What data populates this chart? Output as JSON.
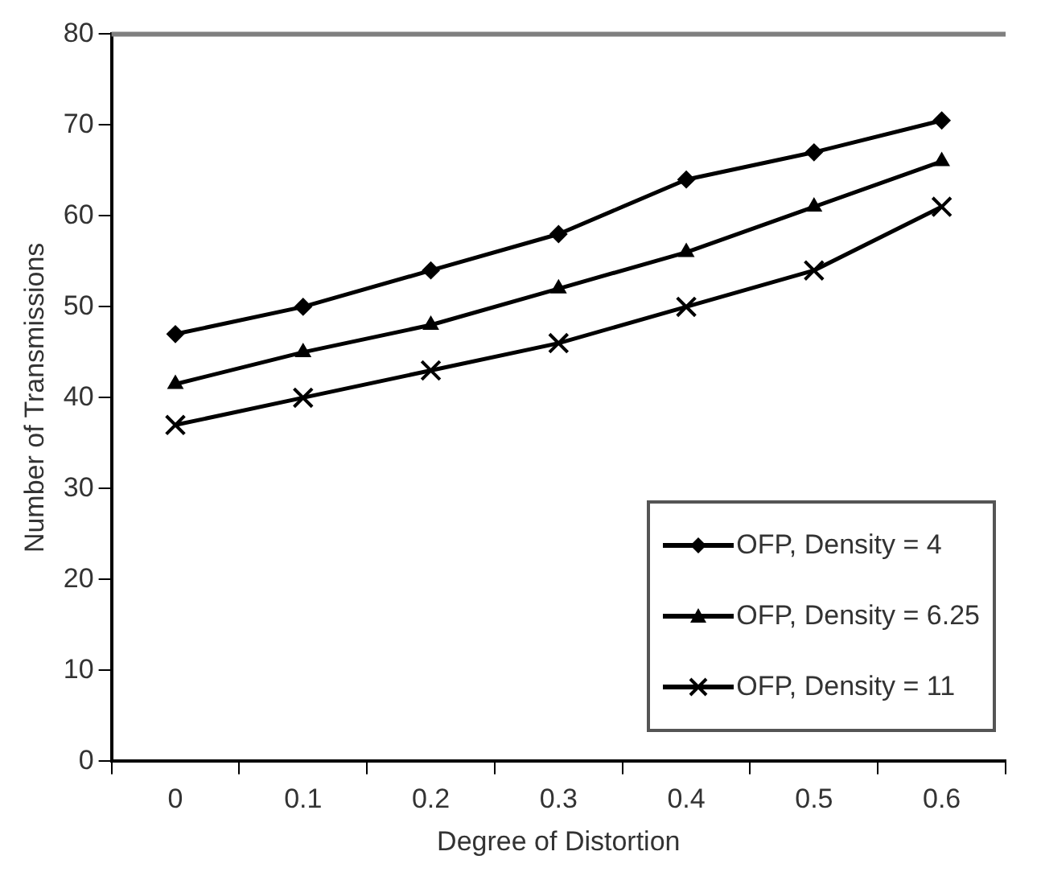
{
  "chart_data": {
    "type": "line",
    "xlabel": "Degree of Distortion",
    "ylabel": "Number of Transmissions",
    "categories": [
      "0",
      "0.1",
      "0.2",
      "0.3",
      "0.4",
      "0.5",
      "0.6"
    ],
    "ylim": [
      0,
      80
    ],
    "yticks": [
      0,
      10,
      20,
      30,
      40,
      50,
      60,
      70,
      80
    ],
    "grid": false,
    "legend": "bottom right",
    "line_style": "solid",
    "series": [
      {
        "name": "OFP, Density = 4",
        "color": "#000000",
        "marker": "diamond",
        "values": [
          47,
          50,
          54,
          58,
          64,
          67,
          70.5
        ]
      },
      {
        "name": "OFP, Density = 6.25",
        "color": "#000000",
        "marker": "triangle",
        "values": [
          41.5,
          45,
          48,
          52,
          56,
          61,
          66
        ]
      },
      {
        "name": "OFP, Density = 11",
        "color": "#000000",
        "marker": "cross",
        "values": [
          37,
          40,
          43,
          46,
          50,
          54,
          61
        ]
      }
    ]
  }
}
